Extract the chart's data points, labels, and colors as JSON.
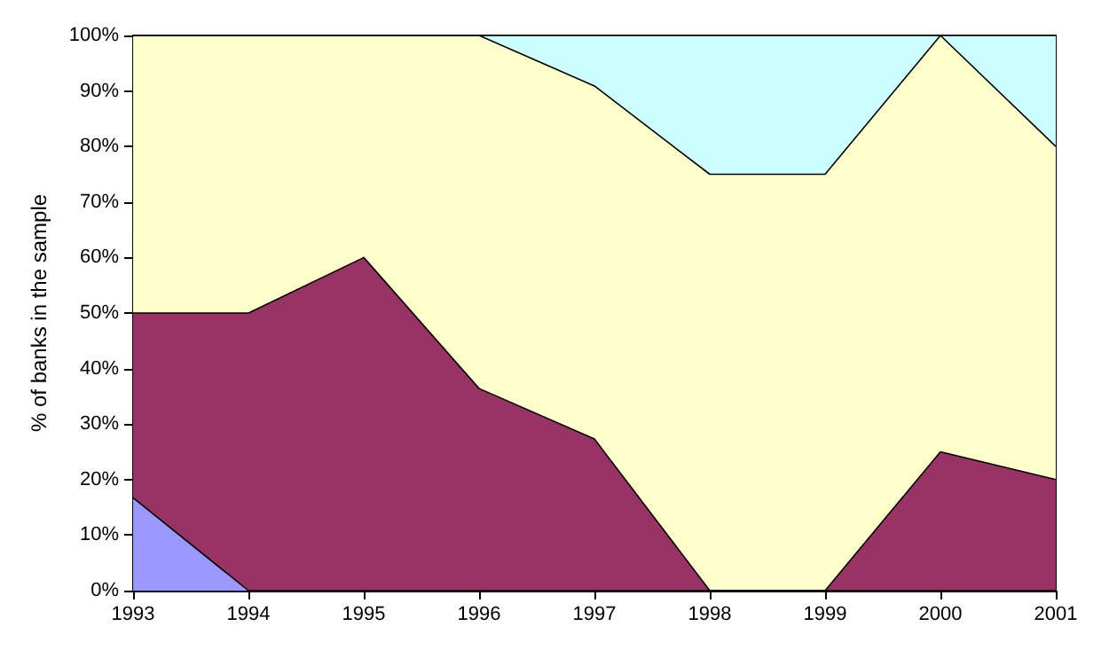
{
  "chart_data": {
    "type": "area",
    "stacked": true,
    "ylabel": "% of banks in the sample",
    "categories": [
      "1993",
      "1994",
      "1995",
      "1996",
      "1997",
      "1998",
      "1999",
      "2000",
      "2001"
    ],
    "series": [
      {
        "color": "#9999ff",
        "values": [
          16.7,
          0,
          0,
          0,
          0,
          0,
          0,
          0,
          0
        ]
      },
      {
        "color": "#993366",
        "values": [
          33.3,
          50,
          60,
          36.4,
          27.3,
          0,
          0,
          25,
          20
        ]
      },
      {
        "color": "#ffffcc",
        "values": [
          50,
          50,
          40,
          63.6,
          63.6,
          75,
          75,
          75,
          60
        ]
      },
      {
        "color": "#ccffff",
        "values": [
          0,
          0,
          0,
          0,
          9.1,
          25,
          25,
          0,
          20
        ]
      }
    ],
    "ylim": [
      0,
      100
    ],
    "yticks": [
      {
        "value": 0,
        "label": "0%"
      },
      {
        "value": 10,
        "label": "10%"
      },
      {
        "value": 20,
        "label": "20%"
      },
      {
        "value": 30,
        "label": "30%"
      },
      {
        "value": 40,
        "label": "40%"
      },
      {
        "value": 50,
        "label": "50%"
      },
      {
        "value": 60,
        "label": "60%"
      },
      {
        "value": 70,
        "label": "70%"
      },
      {
        "value": 80,
        "label": "80%"
      },
      {
        "value": 90,
        "label": "90%"
      },
      {
        "value": 100,
        "label": "100%"
      }
    ],
    "grid": false
  }
}
